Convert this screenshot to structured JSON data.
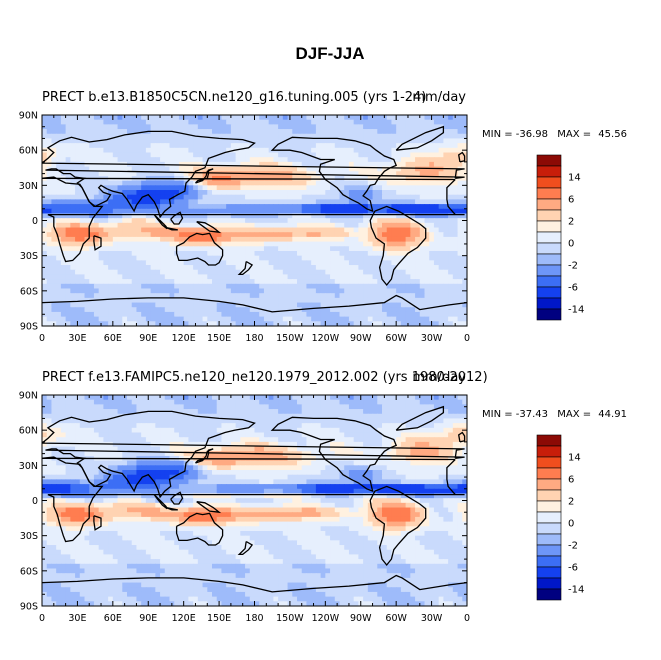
{
  "figure": {
    "title": "DJF-JJA"
  },
  "chart_data": [
    {
      "type": "heatmap",
      "title_left": "PRECT  b.e13.B1850C5CN.ne120_g16.tuning.005 (yrs 1-24)",
      "title_right": "mm/day",
      "x_ticks": [
        "0",
        "30E",
        "60E",
        "90E",
        "120E",
        "150E",
        "180",
        "150W",
        "120W",
        "90W",
        "60W",
        "30W",
        "0"
      ],
      "y_ticks": [
        "90N",
        "60N",
        "30N",
        "0",
        "30S",
        "60S",
        "90S"
      ],
      "xlim": [
        0,
        360
      ],
      "ylim": [
        -90,
        90
      ],
      "min_label": "MIN = ",
      "min_value": "-36.98",
      "max_label": "MAX = ",
      "max_value": "45.56",
      "colorbar_labels": [
        "14",
        "6",
        "2",
        "0",
        "-2",
        "-6",
        "-14"
      ]
    },
    {
      "type": "heatmap",
      "title_left": "PRECT  f.e13.FAMIPC5.ne120_ne120.1979_2012.002 (yrs 1980-2012)",
      "title_right": "mm/day",
      "x_ticks": [
        "0",
        "30E",
        "60E",
        "90E",
        "120E",
        "150E",
        "180",
        "150W",
        "120W",
        "90W",
        "60W",
        "30W",
        "0"
      ],
      "y_ticks": [
        "90N",
        "60N",
        "30N",
        "0",
        "30S",
        "60S",
        "90S"
      ],
      "xlim": [
        0,
        360
      ],
      "ylim": [
        -90,
        90
      ],
      "min_label": "MIN = ",
      "min_value": "-37.43",
      "max_label": "MAX = ",
      "max_value": "44.91",
      "colorbar_labels": [
        "14",
        "6",
        "2",
        "0",
        "-2",
        "-6",
        "-14"
      ]
    }
  ],
  "colormap": [
    "#000080",
    "#0017c8",
    "#1441f0",
    "#3c6ef5",
    "#6e96f8",
    "#9ebbfa",
    "#c9dafc",
    "#e6effd",
    "#fff1e0",
    "#ffd3b2",
    "#ffaa82",
    "#ff7d50",
    "#f04e1e",
    "#c81e0a",
    "#8c0a05"
  ]
}
